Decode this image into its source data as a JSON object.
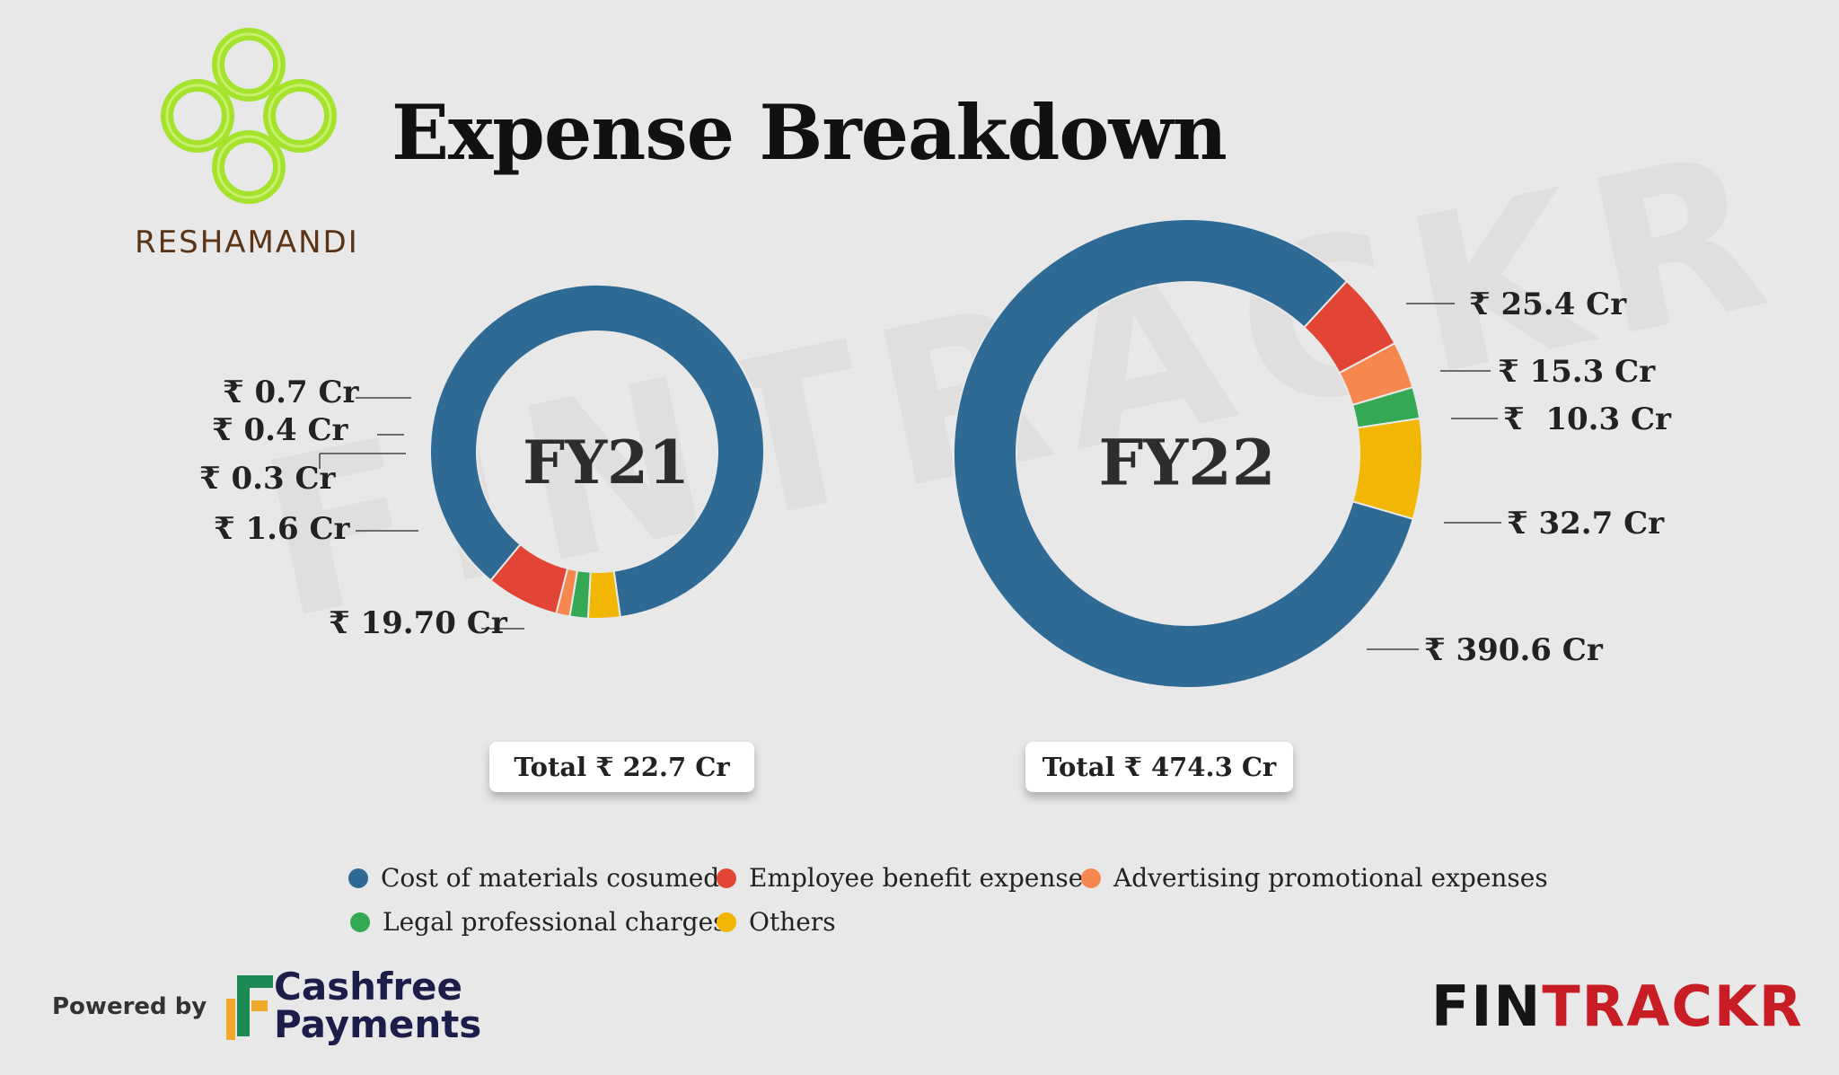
{
  "header": {
    "title": "Expense Breakdown",
    "brand": "RESHAMANDI",
    "watermark": "FINTRACKR"
  },
  "colors": {
    "cost_of_materials": "#2e6a94",
    "employee_benefit": "#e24536",
    "advertising": "#f5874f",
    "legal_professional": "#34a853",
    "others": "#f2b705",
    "background": "#e8e8e8"
  },
  "chart_data": [
    {
      "type": "pie",
      "variant": "donut",
      "title": "FY21",
      "total_label": "Total ₹ 22.7 Cr",
      "categories": [
        "Cost of materials cosumed",
        "Employee benefit expense",
        "Advertising promotional expenses",
        "Legal professional charges",
        "Others"
      ],
      "values": [
        19.7,
        1.6,
        0.3,
        0.4,
        0.7
      ],
      "labels": [
        "₹ 19.70 Cr",
        "₹ 1.6 Cr",
        "₹ 0.3 Cr",
        "₹ 0.4 Cr",
        "₹ 0.7 Cr"
      ],
      "unit": "₹ Cr"
    },
    {
      "type": "pie",
      "variant": "donut",
      "title": "FY22",
      "total_label": "Total ₹ 474.3 Cr",
      "categories": [
        "Cost of materials cosumed",
        "Employee benefit expense",
        "Advertising promotional expenses",
        "Legal professional charges",
        "Others"
      ],
      "values": [
        390.6,
        25.4,
        15.3,
        10.3,
        32.7
      ],
      "labels": [
        "₹ 390.6 Cr",
        "₹ 25.4 Cr",
        "₹ 15.3 Cr",
        "₹  10.3 Cr",
        "₹ 32.7 Cr"
      ],
      "unit": "₹ Cr"
    }
  ],
  "legend": {
    "items": [
      {
        "label": "Cost of materials cosumed",
        "color": "#2e6a94"
      },
      {
        "label": "Employee benefit expense",
        "color": "#e24536"
      },
      {
        "label": "Advertising promotional expenses",
        "color": "#f5874f"
      },
      {
        "label": "Legal professional charges",
        "color": "#34a853"
      },
      {
        "label": "Others",
        "color": "#f2b705"
      }
    ]
  },
  "footer": {
    "powered_by": "Powered by",
    "sponsor_line1": "Cashfree",
    "sponsor_line2": "Payments",
    "brand_part1": "FIN",
    "brand_part2": "TRACKR"
  }
}
